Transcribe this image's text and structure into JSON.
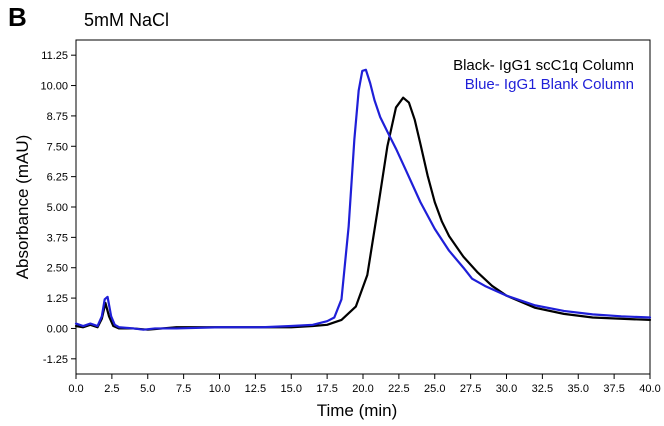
{
  "panel_label": "B",
  "chart_data": {
    "type": "line",
    "title": "5mM NaCl",
    "xlabel": "Time (min)",
    "ylabel": "Absorbance (mAU)",
    "xlim": [
      0,
      40
    ],
    "ylim": [
      -1.875,
      11.875
    ],
    "x_ticks": [
      "0.0",
      "2.5",
      "5.0",
      "7.5",
      "10.0",
      "12.5",
      "15.0",
      "17.5",
      "20.0",
      "22.5",
      "25.0",
      "27.5",
      "30.0",
      "32.5",
      "35.0",
      "37.5",
      "40.0"
    ],
    "x_tick_values": [
      0,
      2.5,
      5,
      7.5,
      10,
      12.5,
      15,
      17.5,
      20,
      22.5,
      25,
      27.5,
      30,
      32.5,
      35,
      37.5,
      40
    ],
    "y_ticks": [
      "-1.25",
      "0.00",
      "1.25",
      "2.50",
      "3.75",
      "5.00",
      "6.25",
      "7.50",
      "8.75",
      "10.00",
      "11.25"
    ],
    "y_tick_values": [
      -1.25,
      0,
      1.25,
      2.5,
      3.75,
      5,
      6.25,
      7.5,
      8.75,
      10,
      11.25
    ],
    "grid": false,
    "legend_position": "top-right",
    "series": [
      {
        "name": "Black- IgG1 scC1q Column",
        "color": "#000000",
        "x": [
          0,
          0.5,
          1,
          1.5,
          1.8,
          2.05,
          2.3,
          2.6,
          3.0,
          4,
          5,
          7,
          10,
          13,
          15,
          16.5,
          17.5,
          18.5,
          19.5,
          20.3,
          21.0,
          21.7,
          22.3,
          22.8,
          23.2,
          23.6,
          24.0,
          24.5,
          25.0,
          25.5,
          26.0,
          27.0,
          28.0,
          29.0,
          30.0,
          32.0,
          34.0,
          36.0,
          38.0,
          40.0
        ],
        "y": [
          0.1,
          0.05,
          0.15,
          0.05,
          0.4,
          1.05,
          0.5,
          0.1,
          0.0,
          0.0,
          -0.05,
          0.05,
          0.05,
          0.05,
          0.05,
          0.1,
          0.15,
          0.35,
          0.9,
          2.2,
          4.8,
          7.5,
          9.1,
          9.5,
          9.3,
          8.6,
          7.6,
          6.3,
          5.2,
          4.4,
          3.8,
          2.95,
          2.3,
          1.75,
          1.35,
          0.85,
          0.6,
          0.45,
          0.4,
          0.35
        ]
      },
      {
        "name": "Blue- IgG1 Blank Column",
        "color": "#1f1fd8",
        "x": [
          0,
          0.5,
          1,
          1.5,
          1.8,
          2.0,
          2.2,
          2.45,
          2.7,
          3.0,
          4,
          4.7,
          5.5,
          7,
          10,
          13,
          15,
          16.5,
          17.5,
          18.0,
          18.5,
          19.0,
          19.4,
          19.7,
          19.95,
          20.2,
          20.5,
          20.8,
          21.2,
          21.7,
          22.3,
          23.0,
          24.0,
          25.0,
          26.0,
          27.0,
          27.6,
          28.5,
          30.0,
          32.0,
          34.0,
          36.0,
          38.0,
          40.0
        ],
        "y": [
          0.2,
          0.1,
          0.2,
          0.1,
          0.5,
          1.2,
          1.3,
          0.5,
          0.15,
          0.05,
          0.0,
          -0.05,
          0.0,
          0.0,
          0.05,
          0.05,
          0.1,
          0.15,
          0.3,
          0.45,
          1.2,
          4.2,
          7.8,
          9.8,
          10.6,
          10.65,
          10.1,
          9.4,
          8.7,
          8.1,
          7.4,
          6.5,
          5.2,
          4.1,
          3.2,
          2.5,
          2.05,
          1.75,
          1.35,
          0.95,
          0.72,
          0.58,
          0.5,
          0.45
        ]
      }
    ]
  }
}
